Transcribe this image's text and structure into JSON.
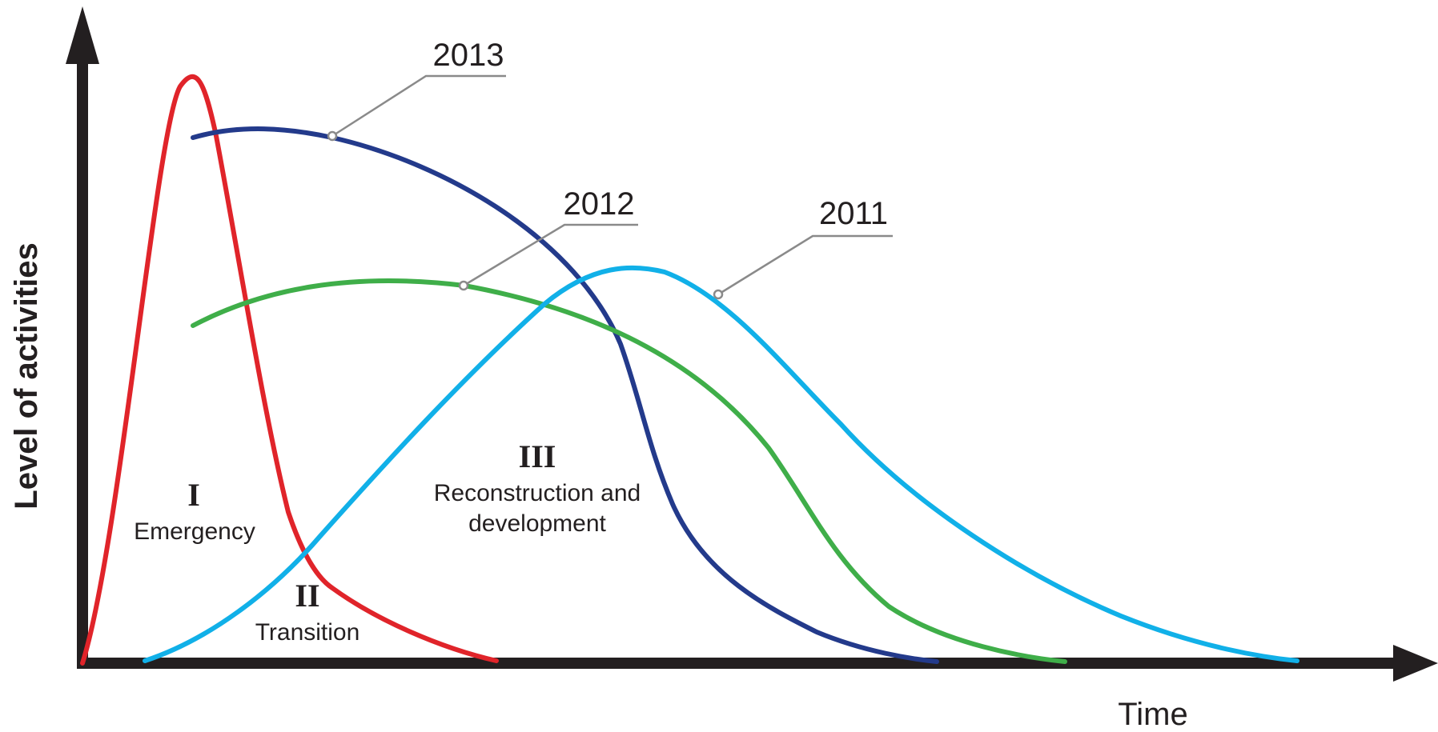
{
  "axes": {
    "y_label": "Level of activities",
    "x_label": "Time"
  },
  "phases": [
    {
      "numeral": "I",
      "name": "Emergency"
    },
    {
      "numeral": "II",
      "name": "Transition"
    },
    {
      "numeral": "III",
      "name_line1": "Reconstruction and",
      "name_line2": "development"
    }
  ],
  "curves": [
    {
      "id": "phase-i",
      "color": "#e0242a"
    },
    {
      "id": "2013",
      "label": "2013",
      "color": "#233a8b"
    },
    {
      "id": "2012",
      "label": "2012",
      "color": "#3fae49"
    },
    {
      "id": "2011",
      "label": "2011",
      "color": "#11b0e8"
    }
  ],
  "colors": {
    "axis": "#231f20",
    "leader": "#8a8a8a"
  }
}
